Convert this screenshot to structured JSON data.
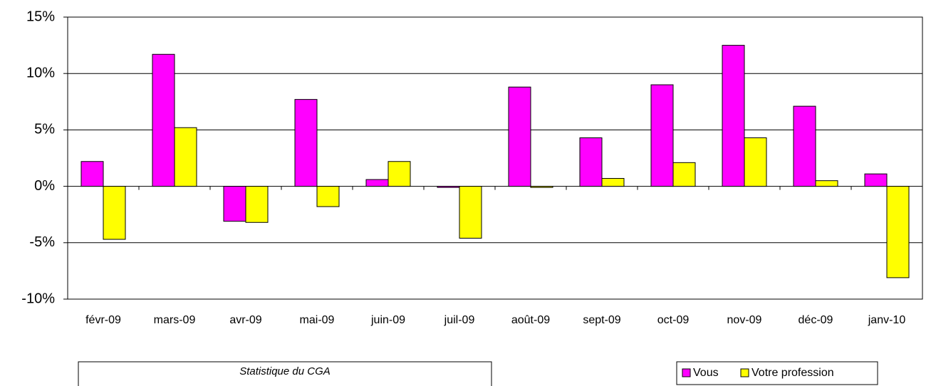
{
  "chart_data": {
    "type": "bar",
    "categories": [
      "févr-09",
      "mars-09",
      "avr-09",
      "mai-09",
      "juin-09",
      "juil-09",
      "août-09",
      "sept-09",
      "oct-09",
      "nov-09",
      "déc-09",
      "janv-10"
    ],
    "series": [
      {
        "name": "Vous",
        "color": "#ff00ff",
        "values": [
          2.2,
          11.7,
          -3.1,
          7.7,
          0.6,
          -0.1,
          8.8,
          4.3,
          9.0,
          12.5,
          7.1,
          1.1
        ]
      },
      {
        "name": "Votre profession",
        "color": "#ffff00",
        "values": [
          -4.7,
          5.2,
          -3.2,
          -1.8,
          2.2,
          -4.6,
          -0.1,
          0.7,
          2.1,
          4.3,
          0.5,
          -8.1
        ]
      }
    ],
    "ylim": [
      -10,
      15
    ],
    "yticks": [
      {
        "value": -10,
        "label": "-10%"
      },
      {
        "value": -5,
        "label": "-5%"
      },
      {
        "value": 0,
        "label": "0%"
      },
      {
        "value": 5,
        "label": "5%"
      },
      {
        "value": 10,
        "label": "10%"
      },
      {
        "value": 15,
        "label": "15%"
      }
    ],
    "grid": true,
    "legend": "bottom-right",
    "annotation": "Statistique du CGA"
  }
}
